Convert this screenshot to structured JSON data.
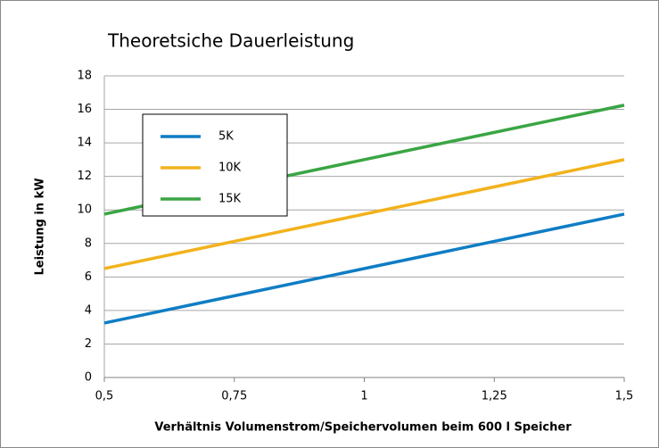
{
  "chart_data": {
    "type": "line",
    "title": "Theoretsiche Dauerleistung",
    "x_label": "Verhältnis Volumenstrom/Speichervolumen beim 600 l Speicher",
    "y_label": "Leistung in kW",
    "x": [
      0.5,
      1.5
    ],
    "series": [
      {
        "name": "5K",
        "color": "#0f7dc4",
        "values": [
          3.25,
          9.75
        ]
      },
      {
        "name": "10K",
        "color": "#f2b21c",
        "values": [
          6.5,
          13
        ]
      },
      {
        "name": "15K",
        "color": "#3aa544",
        "values": [
          9.75,
          16.25
        ]
      }
    ],
    "xlim": [
      0.5,
      1.5
    ],
    "xticks": [
      {
        "value": 0.5,
        "label": "0,5"
      },
      {
        "value": 0.75,
        "label": "0,75"
      },
      1,
      {
        "value": 1.25,
        "label": "1,25"
      },
      {
        "value": 1.5,
        "label": "1,5"
      }
    ],
    "ylim": [
      0,
      18
    ],
    "yticks": [
      0,
      2,
      4,
      6,
      8,
      10,
      12,
      14,
      16,
      18
    ],
    "grid": true,
    "legend": "upper left"
  }
}
